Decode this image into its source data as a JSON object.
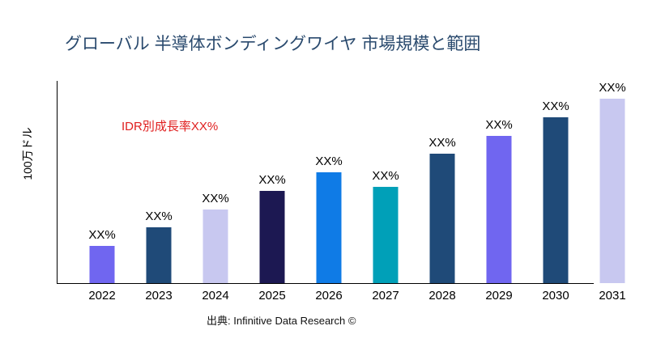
{
  "chart_data": {
    "type": "bar",
    "title": "グローバル 半導体ボンディングワイヤ 市場規模と範囲",
    "ylabel": "100万ドル",
    "xlabel": "",
    "annotation": "IDR別成長率XX%",
    "source": "出典: Infinitive Data Research ©",
    "categories": [
      "2022",
      "2023",
      "2024",
      "2025",
      "2026",
      "2027",
      "2028",
      "2029",
      "2030",
      "2031"
    ],
    "values": [
      46,
      69,
      91,
      114,
      137,
      119,
      160,
      182,
      205,
      228
    ],
    "data_labels": [
      "XX%",
      "XX%",
      "XX%",
      "XX%",
      "XX%",
      "XX%",
      "XX%",
      "XX%",
      "XX%",
      "XX%"
    ],
    "colors": [
      "#7066f0",
      "#1f4a78",
      "#c8c8f0",
      "#1c1852",
      "#0f7be6",
      "#00a0b8",
      "#1f4a78",
      "#7066f0",
      "#1f4a78",
      "#c8c8f0"
    ],
    "ylim": [
      0,
      250
    ],
    "grid": false,
    "legend": "none"
  }
}
